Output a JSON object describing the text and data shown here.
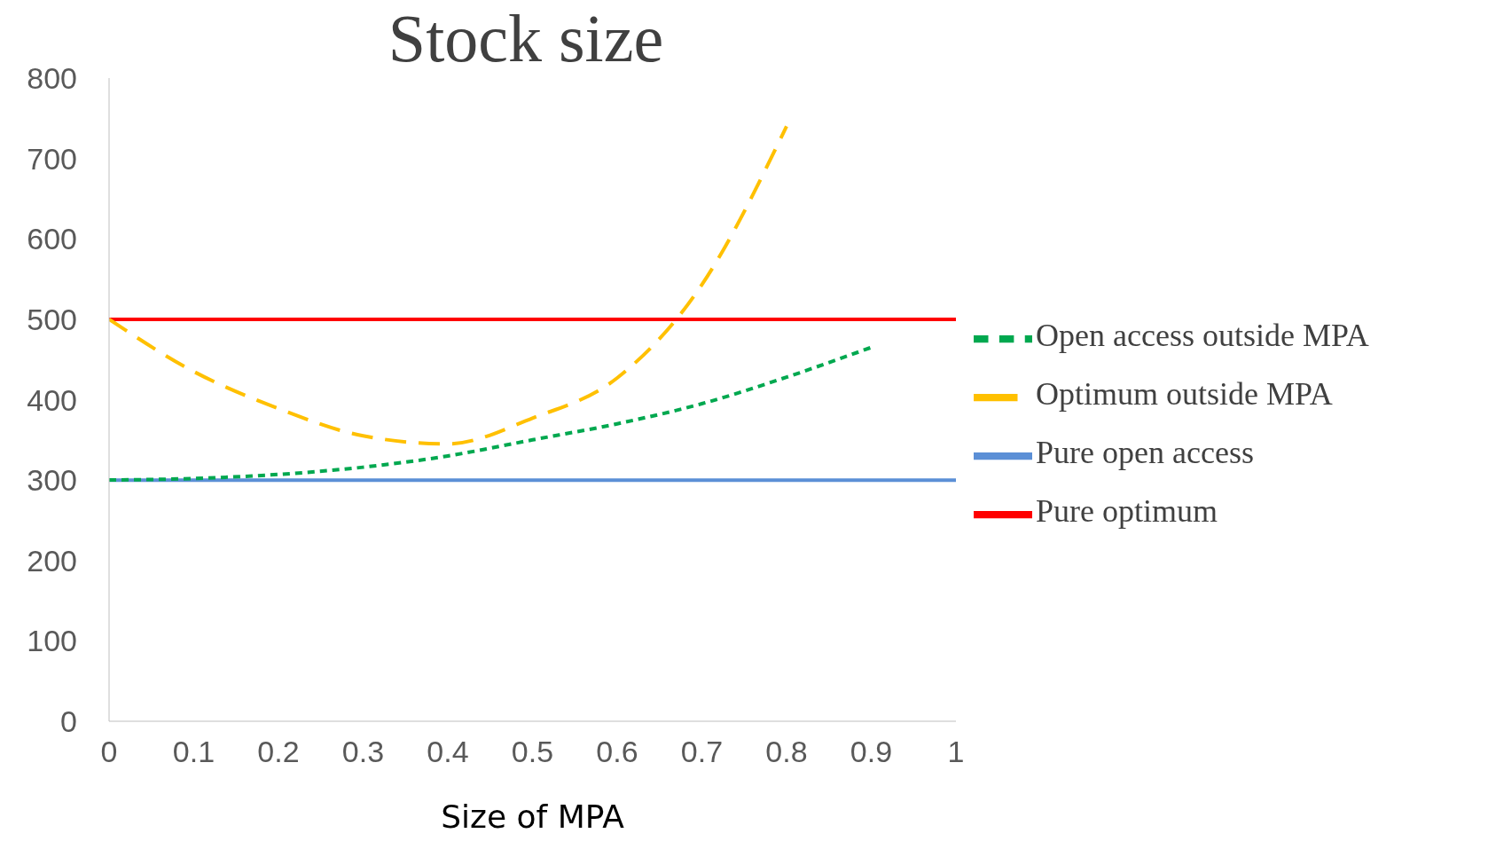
{
  "chart_data": {
    "type": "line",
    "title": "Stock size",
    "xlabel": "Size of MPA",
    "x": [
      0,
      0.1,
      0.2,
      0.3,
      0.4,
      0.5,
      0.6,
      0.7,
      0.8,
      0.9,
      1
    ],
    "series": [
      {
        "name": "Pure open access",
        "color": "#5b8fd6",
        "line_style": "solid",
        "values": [
          300,
          300,
          300,
          300,
          300,
          300,
          300,
          300,
          300,
          300,
          300
        ]
      },
      {
        "name": "Open access outside MPA",
        "color": "#00a84f",
        "line_style": "dotted",
        "values": [
          300,
          302,
          307,
          316,
          330,
          350,
          370,
          395,
          428,
          465,
          null
        ]
      },
      {
        "name": "Pure optimum",
        "color": "#ff0000",
        "line_style": "solid",
        "values": [
          500,
          500,
          500,
          500,
          500,
          500,
          500,
          500,
          500,
          500,
          500
        ]
      },
      {
        "name": "Optimum outside MPA",
        "color": "#ffc000",
        "line_style": "dashed",
        "values": [
          500,
          435,
          389,
          355,
          345,
          377,
          427,
          543,
          740,
          null,
          null
        ]
      }
    ],
    "xlim": [
      0,
      1
    ],
    "xticks": [
      0,
      0.1,
      0.2,
      0.3,
      0.4,
      0.5,
      0.6,
      0.7,
      0.8,
      0.9,
      1
    ],
    "ylim": [
      0,
      800
    ],
    "yticks": [
      0,
      100,
      200,
      300,
      400,
      500,
      600,
      700,
      800
    ],
    "grid": false,
    "legend": "right",
    "marker": "none"
  }
}
